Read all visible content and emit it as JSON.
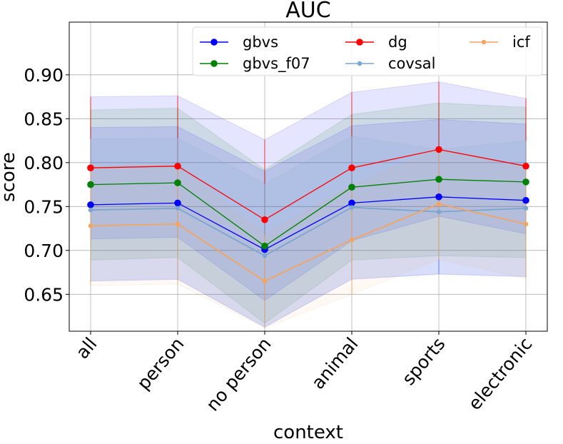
{
  "chart_data": {
    "type": "line",
    "title": "AUC",
    "xlabel": "context",
    "ylabel": "score",
    "categories": [
      "all",
      "person",
      "no person",
      "animal",
      "sports",
      "electronic"
    ],
    "ylim": [
      0.608,
      0.96
    ],
    "yticks": [
      "0.65",
      "0.70",
      "0.75",
      "0.80",
      "0.85",
      "0.90"
    ],
    "grid": true,
    "legend": {
      "position": "top-right",
      "columns": 3
    },
    "series": [
      {
        "name": "gbvs",
        "color": "#0000ff",
        "marker": "large",
        "values": [
          0.752,
          0.754,
          0.701,
          0.754,
          0.761,
          0.757
        ],
        "band": {
          "lower": [
            0.665,
            0.667,
            0.613,
            0.667,
            0.673,
            0.67
          ],
          "upper": [
            0.84,
            0.841,
            0.79,
            0.842,
            0.849,
            0.844
          ]
        }
      },
      {
        "name": "gbvs_f07",
        "color": "#008000",
        "marker": "large",
        "values": [
          0.775,
          0.777,
          0.705,
          0.772,
          0.781,
          0.778
        ],
        "band": {
          "lower": [
            0.689,
            0.692,
            0.617,
            0.689,
            0.694,
            0.692
          ],
          "upper": [
            0.86,
            0.862,
            0.792,
            0.855,
            0.868,
            0.863
          ]
        }
      },
      {
        "name": "dg",
        "color": "#ff0000",
        "marker": "large",
        "values": [
          0.794,
          0.796,
          0.735,
          0.794,
          0.815,
          0.796
        ],
        "band": {
          "lower": [
            0.713,
            0.715,
            0.643,
            0.711,
            0.739,
            0.719
          ],
          "upper": [
            0.875,
            0.876,
            0.826,
            0.88,
            0.892,
            0.873
          ]
        }
      },
      {
        "name": "covsal",
        "color": "#7aa6d0",
        "marker": "small",
        "values": [
          0.746,
          0.748,
          0.694,
          0.749,
          0.744,
          0.748
        ],
        "band": {
          "lower": [
            0.666,
            0.668,
            0.612,
            0.668,
            0.673,
            0.671
          ],
          "upper": [
            0.827,
            0.828,
            0.776,
            0.83,
            0.815,
            0.825
          ]
        }
      },
      {
        "name": "icf",
        "color": "#f4a460",
        "marker": "small",
        "values": [
          0.728,
          0.73,
          0.665,
          0.712,
          0.753,
          0.73
        ],
        "band": {
          "lower": [
            0.66,
            0.662,
            0.612,
            0.65,
            0.69,
            0.668
          ],
          "upper": [
            0.796,
            0.798,
            0.718,
            0.774,
            0.816,
            0.792
          ]
        }
      }
    ]
  }
}
